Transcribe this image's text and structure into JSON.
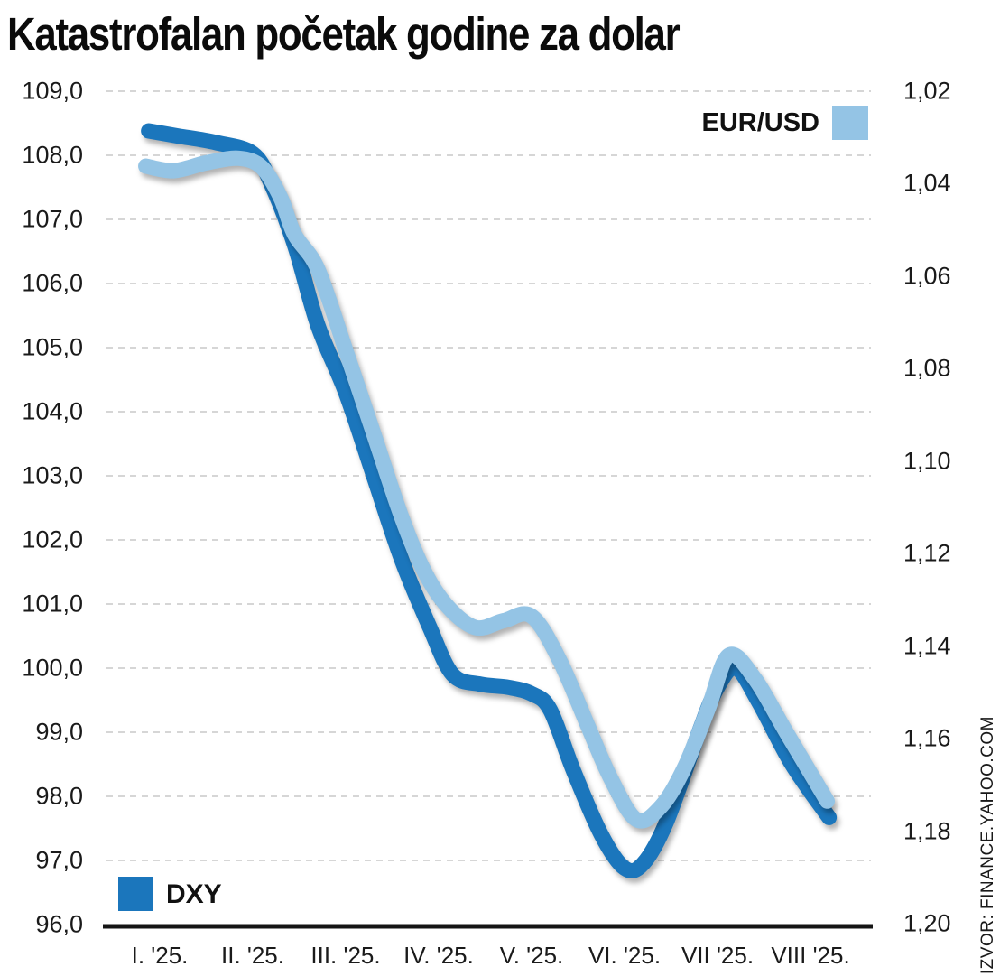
{
  "title": "Katastrofalan početak godine za dolar",
  "source_note": "IZVOR: FINANCE.YAHOO.COM",
  "legend": {
    "eur_label": "EUR/USD",
    "dxy_label": "DXY"
  },
  "colors": {
    "dxy_blue": "#1b76bc",
    "eur_blue": "#94c4e5",
    "grid": "#c8c8c8",
    "axis": "#151515",
    "text": "#1a1a1a"
  },
  "chart_data": {
    "type": "line",
    "title": "Katastrofalan početak godine za dolar",
    "grid": "horizontal-dashed",
    "x_axis": {
      "tick_labels": [
        "I. '25.",
        "II. '25.",
        "III. '25.",
        "IV. '25.",
        "V. '25.",
        "VI. '25.",
        "VII '25.",
        "VIII '25."
      ],
      "note": "months of 2025"
    },
    "y_axis_left": {
      "series": "DXY",
      "min": 96.0,
      "max": 109.0,
      "tick_labels": [
        "109,0",
        "108,0",
        "107,0",
        "106,0",
        "105,0",
        "104,0",
        "103,0",
        "102,0",
        "101,0",
        "100,0",
        "99,0",
        "98,0",
        "97,0",
        "96,0"
      ],
      "tick_values": [
        109,
        108,
        107,
        106,
        105,
        104,
        103,
        102,
        101,
        100,
        99,
        98,
        97,
        96
      ]
    },
    "y_axis_right": {
      "series": "EUR/USD",
      "min": 1.02,
      "max": 1.2,
      "inverted_direction": "values increase downward",
      "tick_labels": [
        "1,02",
        "1,04",
        "1,06",
        "1,08",
        "1,10",
        "1,12",
        "1,14",
        "1,16",
        "1,18",
        "1,20"
      ],
      "tick_values": [
        1.02,
        1.04,
        1.06,
        1.08,
        1.1,
        1.12,
        1.14,
        1.16,
        1.18,
        1.2
      ]
    },
    "legend_positions": {
      "eur": "top-right",
      "dxy": "bottom-left"
    },
    "series": [
      {
        "name": "DXY",
        "axis": "left",
        "color": "#1b76bc",
        "points": [
          [
            0.88,
            108.38
          ],
          [
            1.2,
            108.3
          ],
          [
            1.6,
            108.2
          ],
          [
            2.0,
            108.03
          ],
          [
            2.2,
            107.55
          ],
          [
            2.45,
            106.6
          ],
          [
            2.7,
            105.35
          ],
          [
            3.0,
            104.3
          ],
          [
            3.3,
            103.0
          ],
          [
            3.6,
            101.7
          ],
          [
            3.9,
            100.65
          ],
          [
            4.15,
            99.9
          ],
          [
            4.45,
            99.75
          ],
          [
            4.75,
            99.7
          ],
          [
            5.0,
            99.6
          ],
          [
            5.2,
            99.35
          ],
          [
            5.45,
            98.4
          ],
          [
            5.75,
            97.4
          ],
          [
            6.0,
            96.88
          ],
          [
            6.2,
            96.95
          ],
          [
            6.45,
            97.6
          ],
          [
            6.8,
            99.0
          ],
          [
            7.0,
            99.7
          ],
          [
            7.2,
            100.0
          ],
          [
            7.45,
            99.45
          ],
          [
            7.8,
            98.5
          ],
          [
            8.2,
            97.67
          ]
        ]
      },
      {
        "name": "EUR/USD",
        "axis": "right",
        "color": "#94c4e5",
        "points": [
          [
            0.85,
            1.0362
          ],
          [
            1.15,
            1.0372
          ],
          [
            1.5,
            1.0355
          ],
          [
            1.85,
            1.0345
          ],
          [
            2.1,
            1.0365
          ],
          [
            2.3,
            1.043
          ],
          [
            2.45,
            1.051
          ],
          [
            2.7,
            1.0585
          ],
          [
            3.0,
            1.076
          ],
          [
            3.3,
            1.094
          ],
          [
            3.6,
            1.112
          ],
          [
            3.85,
            1.124
          ],
          [
            4.1,
            1.1315
          ],
          [
            4.4,
            1.136
          ],
          [
            4.7,
            1.1345
          ],
          [
            5.0,
            1.1335
          ],
          [
            5.3,
            1.143
          ],
          [
            5.6,
            1.157
          ],
          [
            5.85,
            1.1685
          ],
          [
            6.13,
            1.1775
          ],
          [
            6.4,
            1.1745
          ],
          [
            6.65,
            1.166
          ],
          [
            6.9,
            1.1535
          ],
          [
            7.12,
            1.142
          ],
          [
            7.4,
            1.147
          ],
          [
            7.75,
            1.159
          ],
          [
            8.18,
            1.1735
          ]
        ]
      }
    ]
  }
}
